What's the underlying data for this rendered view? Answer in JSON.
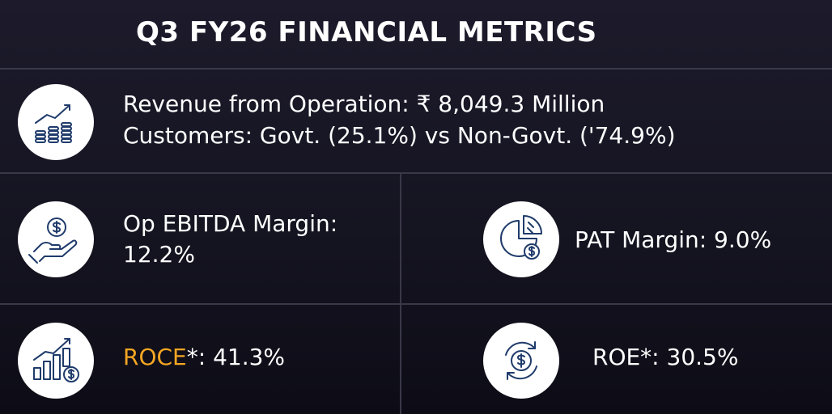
{
  "title": "Q3 FY26 FINANCIAL METRICS",
  "revenue": {
    "icon": "growth-coins-icon",
    "line1": "Revenue from Operation: ₹ 8,049.3 Million",
    "line2": "Customers: Govt. (25.1%) vs Non-Govt. ('74.9%)"
  },
  "ebitda": {
    "icon": "hand-dollar-icon",
    "line1": "Op EBITDA Margin:",
    "line2": "12.2%"
  },
  "pat": {
    "icon": "pie-dollar-icon",
    "text": "PAT Margin: 9.0%"
  },
  "roce": {
    "icon": "bar-growth-icon",
    "label": "ROCE",
    "value": "*: 41.3%"
  },
  "roe": {
    "icon": "cycle-dollar-icon",
    "text": "ROE*: 30.5%"
  },
  "colors": {
    "accent": "#f5a623",
    "icon_stroke": "#1f3b6b",
    "divider": "#3a3848"
  }
}
